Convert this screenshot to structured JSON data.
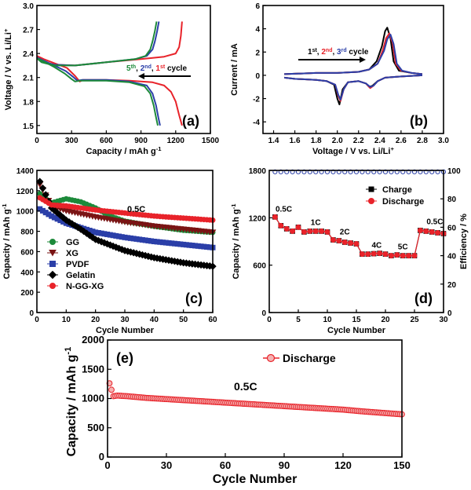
{
  "chart_data": [
    {
      "panel": "(a)",
      "type": "line",
      "xlabel": "Capacity / mAh g-1",
      "ylabel": "Voltage / V vs. Li/Li+",
      "xlim": [
        0,
        1500
      ],
      "ylim": [
        1.4,
        3.0
      ],
      "xticks": [
        "0",
        "300",
        "600",
        "900",
        "1200",
        "1500"
      ],
      "yticks": [
        "1.5",
        "1.8",
        "2.1",
        "2.4",
        "2.7",
        "3.0"
      ],
      "annotation": {
        "parts": [
          "5th",
          ", ",
          "2nd",
          ", ",
          "1st",
          " cycle"
        ]
      },
      "series": [
        {
          "name": "1st",
          "color": "#e8232a",
          "discharge": {
            "x": [
              0,
              60,
              150,
              260,
              330,
              370,
              400,
              600,
              800,
              1000,
              1100,
              1160,
              1200,
              1230,
              1255
            ],
            "y": [
              2.37,
              2.33,
              2.28,
              2.22,
              2.12,
              2.05,
              2.07,
              2.07,
              2.06,
              2.04,
              2.0,
              1.92,
              1.8,
              1.63,
              1.5
            ]
          },
          "charge": {
            "x": [
              0,
              40,
              150,
              330,
              600,
              900,
              1100,
              1200,
              1230,
              1245,
              1255
            ],
            "y": [
              2.36,
              2.3,
              2.26,
              2.25,
              2.29,
              2.33,
              2.36,
              2.4,
              2.48,
              2.62,
              2.8
            ]
          }
        },
        {
          "name": "2nd",
          "color": "#2b3fa8",
          "discharge": {
            "x": [
              0,
              60,
              150,
              250,
              320,
              350,
              390,
              600,
              800,
              950,
              1000,
              1030,
              1050,
              1065
            ],
            "y": [
              2.35,
              2.31,
              2.25,
              2.18,
              2.1,
              2.06,
              2.07,
              2.07,
              2.05,
              2.0,
              1.9,
              1.75,
              1.6,
              1.5
            ]
          },
          "charge": {
            "x": [
              0,
              40,
              150,
              330,
              600,
              850,
              950,
              1000,
              1020,
              1040,
              1055
            ],
            "y": [
              2.35,
              2.3,
              2.26,
              2.25,
              2.29,
              2.33,
              2.37,
              2.45,
              2.55,
              2.68,
              2.8
            ]
          }
        },
        {
          "name": "5th",
          "color": "#1d8a3a",
          "discharge": {
            "x": [
              0,
              60,
              150,
              240,
              300,
              330,
              370,
              600,
              800,
              930,
              980,
              1010,
              1030,
              1045
            ],
            "y": [
              2.34,
              2.3,
              2.23,
              2.15,
              2.08,
              2.05,
              2.06,
              2.06,
              2.04,
              1.99,
              1.9,
              1.75,
              1.6,
              1.5
            ]
          },
          "charge": {
            "x": [
              0,
              40,
              150,
              330,
              600,
              850,
              940,
              980,
              1000,
              1020,
              1035
            ],
            "y": [
              2.34,
              2.29,
              2.25,
              2.25,
              2.29,
              2.33,
              2.37,
              2.45,
              2.55,
              2.68,
              2.8
            ]
          }
        }
      ]
    },
    {
      "panel": "(b)",
      "type": "line",
      "xlabel": "Voltage / V vs. Li/Li+",
      "ylabel": "Current / mA",
      "xlim": [
        1.3,
        3.0
      ],
      "ylim": [
        -5,
        6
      ],
      "xticks": [
        "1.4",
        "1.6",
        "1.8",
        "2.0",
        "2.2",
        "2.4",
        "2.6",
        "2.8",
        "3.0"
      ],
      "yticks": [
        "-4",
        "-2",
        "0",
        "2",
        "4",
        "6"
      ],
      "annotation": {
        "parts": [
          "1st",
          ", ",
          "2nd",
          ", ",
          "3rd",
          " cycle"
        ]
      },
      "series": [
        {
          "name": "1st",
          "color": "#000000",
          "cathodic": {
            "x": [
              2.8,
              2.6,
              2.45,
              2.38,
              2.33,
              2.3,
              2.27,
              2.2,
              2.1,
              2.05,
              2.02,
              2.0,
              1.97,
              1.9,
              1.8,
              1.6,
              1.5
            ],
            "y": [
              0,
              -0.1,
              -0.2,
              -0.5,
              -0.9,
              -1.0,
              -0.7,
              -0.5,
              -0.6,
              -1.2,
              -2.5,
              -2.0,
              -0.8,
              -0.5,
              -0.4,
              -0.3,
              -0.2
            ]
          },
          "anodic": {
            "x": [
              1.5,
              1.8,
              2.0,
              2.2,
              2.3,
              2.37,
              2.42,
              2.45,
              2.47,
              2.5,
              2.53,
              2.58,
              2.7,
              2.8
            ],
            "y": [
              0.1,
              0.2,
              0.2,
              0.3,
              0.5,
              1.2,
              2.5,
              3.8,
              4.1,
              3.2,
              1.2,
              0.4,
              0.2,
              0.1
            ]
          }
        },
        {
          "name": "2nd",
          "color": "#e8232a",
          "cathodic": {
            "x": [
              2.8,
              2.6,
              2.45,
              2.38,
              2.34,
              2.31,
              2.27,
              2.2,
              2.1,
              2.06,
              2.03,
              2.01,
              1.98,
              1.9,
              1.8,
              1.6,
              1.5
            ],
            "y": [
              0,
              -0.1,
              -0.2,
              -0.5,
              -0.9,
              -1.1,
              -0.7,
              -0.5,
              -0.6,
              -1.2,
              -2.2,
              -1.8,
              -0.8,
              -0.5,
              -0.4,
              -0.3,
              -0.2
            ]
          },
          "anodic": {
            "x": [
              1.5,
              1.8,
              2.0,
              2.2,
              2.3,
              2.38,
              2.43,
              2.46,
              2.49,
              2.52,
              2.55,
              2.6,
              2.7,
              2.8
            ],
            "y": [
              0.1,
              0.2,
              0.2,
              0.3,
              0.5,
              1.0,
              2.2,
              3.2,
              3.6,
              2.8,
              1.0,
              0.4,
              0.2,
              0.1
            ]
          }
        },
        {
          "name": "3rd",
          "color": "#2b3fa8",
          "cathodic": {
            "x": [
              2.8,
              2.6,
              2.45,
              2.38,
              2.34,
              2.31,
              2.27,
              2.2,
              2.1,
              2.06,
              2.03,
              2.01,
              1.98,
              1.9,
              1.8,
              1.6,
              1.5
            ],
            "y": [
              0,
              -0.1,
              -0.2,
              -0.5,
              -0.9,
              -1.0,
              -0.7,
              -0.5,
              -0.6,
              -1.2,
              -2.1,
              -1.7,
              -0.8,
              -0.5,
              -0.4,
              -0.3,
              -0.2
            ]
          },
          "anodic": {
            "x": [
              1.5,
              1.8,
              2.0,
              2.2,
              2.3,
              2.38,
              2.44,
              2.47,
              2.5,
              2.53,
              2.56,
              2.61,
              2.7,
              2.8
            ],
            "y": [
              0.1,
              0.2,
              0.2,
              0.3,
              0.5,
              1.0,
              2.1,
              3.1,
              3.5,
              2.7,
              1.0,
              0.4,
              0.2,
              0.1
            ]
          }
        }
      ]
    },
    {
      "panel": "(c)",
      "type": "scatter",
      "xlabel": "Cycle Number",
      "ylabel": "Capacity / mAh g-1",
      "xlim": [
        0,
        60
      ],
      "ylim": [
        0,
        1400
      ],
      "xticks": [
        "0",
        "10",
        "20",
        "30",
        "40",
        "50",
        "60"
      ],
      "yticks": [
        "0",
        "200",
        "400",
        "600",
        "800",
        "1000",
        "1200",
        "1400"
      ],
      "annotation": "0.5C",
      "series": [
        {
          "name": "GG",
          "color": "#1d8a3a",
          "marker": "circle",
          "x": [
            1,
            5,
            10,
            15,
            20,
            25,
            30,
            40,
            50,
            60
          ],
          "y": [
            1170,
            1080,
            1120,
            1090,
            1030,
            950,
            900,
            850,
            810,
            790
          ]
        },
        {
          "name": "XG",
          "color": "#7a1414",
          "marker": "triangle-down",
          "x": [
            1,
            5,
            10,
            20,
            30,
            40,
            50,
            60
          ],
          "y": [
            1260,
            1050,
            1000,
            940,
            890,
            850,
            820,
            790
          ]
        },
        {
          "name": "PVDF",
          "color": "#2b3fa8",
          "marker": "square",
          "x": [
            1,
            5,
            10,
            20,
            30,
            40,
            50,
            60
          ],
          "y": [
            1020,
            950,
            880,
            790,
            740,
            700,
            670,
            640
          ]
        },
        {
          "name": "Gelatin",
          "color": "#000000",
          "marker": "diamond",
          "x": [
            1,
            5,
            10,
            15,
            20,
            30,
            40,
            50,
            60
          ],
          "y": [
            1290,
            1030,
            910,
            820,
            720,
            610,
            540,
            490,
            455
          ]
        },
        {
          "name": "N-GG-XG",
          "color": "#e8232a",
          "marker": "circle",
          "x": [
            1,
            5,
            10,
            20,
            30,
            40,
            50,
            60
          ],
          "y": [
            1130,
            1060,
            1050,
            1010,
            980,
            950,
            930,
            910
          ]
        }
      ]
    },
    {
      "panel": "(d)",
      "type": "scatter",
      "xlabel": "Cycle Number",
      "ylabel": "Capacity / mAh g-1",
      "ylabel_right": "Efficiency / %",
      "xlim": [
        0,
        30
      ],
      "ylim": [
        0,
        1800
      ],
      "ylim_right": [
        0,
        100
      ],
      "xticks": [
        "0",
        "5",
        "10",
        "15",
        "20",
        "25",
        "30"
      ],
      "yticks": [
        "0",
        "600",
        "1200",
        "1800"
      ],
      "yticks_right": [
        "0",
        "20",
        "40",
        "60",
        "80",
        "100"
      ],
      "rate_labels": [
        "0.5C",
        "1C",
        "2C",
        "4C",
        "5C",
        "0.5C"
      ],
      "legend": [
        "Charge",
        "Discharge"
      ],
      "series": [
        {
          "name": "Charge",
          "color": "#000000",
          "x": [
            1,
            2,
            3,
            4,
            5,
            6,
            7,
            8,
            9,
            10,
            11,
            12,
            13,
            14,
            15,
            16,
            17,
            18,
            19,
            20,
            21,
            22,
            23,
            24,
            25,
            26,
            27,
            28,
            29,
            30
          ],
          "y": [
            1210,
            1100,
            1060,
            1030,
            1080,
            1020,
            1030,
            1030,
            1030,
            1020,
            920,
            910,
            890,
            880,
            870,
            740,
            740,
            745,
            750,
            740,
            720,
            730,
            720,
            720,
            720,
            1040,
            1030,
            1020,
            1010,
            1000
          ]
        },
        {
          "name": "Discharge",
          "color": "#e8232a",
          "x": [
            1,
            2,
            3,
            4,
            5,
            6,
            7,
            8,
            9,
            10,
            11,
            12,
            13,
            14,
            15,
            16,
            17,
            18,
            19,
            20,
            21,
            22,
            23,
            24,
            25,
            26,
            27,
            28,
            29,
            30
          ],
          "y": [
            1210,
            1100,
            1060,
            1030,
            1080,
            1020,
            1030,
            1030,
            1030,
            1020,
            920,
            910,
            890,
            880,
            870,
            740,
            740,
            745,
            750,
            740,
            720,
            730,
            720,
            720,
            720,
            1040,
            1030,
            1020,
            1010,
            1000
          ]
        },
        {
          "name": "Efficiency",
          "color": "#2b3fa8",
          "axis": "right",
          "x": [
            1,
            2,
            3,
            4,
            5,
            6,
            7,
            8,
            9,
            10,
            11,
            12,
            13,
            14,
            15,
            16,
            17,
            18,
            19,
            20,
            21,
            22,
            23,
            24,
            25,
            26,
            27,
            28,
            29,
            30
          ],
          "y": [
            99,
            99,
            99,
            99,
            99,
            99,
            99,
            99,
            99,
            99,
            99,
            99,
            99,
            99,
            99,
            99,
            99,
            99,
            99,
            99,
            99,
            99,
            99,
            99,
            99,
            99,
            99,
            99,
            99,
            99
          ]
        }
      ]
    },
    {
      "panel": "(e)",
      "type": "scatter",
      "xlabel": "Cycle Number",
      "ylabel": "Capacity / mAh g-1",
      "xlim": [
        0,
        150
      ],
      "ylim": [
        0,
        2000
      ],
      "xticks": [
        "0",
        "30",
        "60",
        "90",
        "120",
        "150"
      ],
      "yticks": [
        "0",
        "500",
        "1000",
        "1500",
        "2000"
      ],
      "annotation": "0.5C",
      "legend": [
        "Discharge"
      ],
      "series": [
        {
          "name": "Discharge",
          "color": "#e8232a",
          "x": [
            1,
            3,
            5,
            10,
            20,
            30,
            40,
            50,
            60,
            70,
            80,
            90,
            100,
            110,
            120,
            130,
            140,
            150
          ],
          "y": [
            1260,
            1040,
            1050,
            1040,
            1010,
            990,
            970,
            950,
            930,
            910,
            890,
            870,
            850,
            830,
            810,
            780,
            755,
            730
          ]
        }
      ]
    }
  ]
}
